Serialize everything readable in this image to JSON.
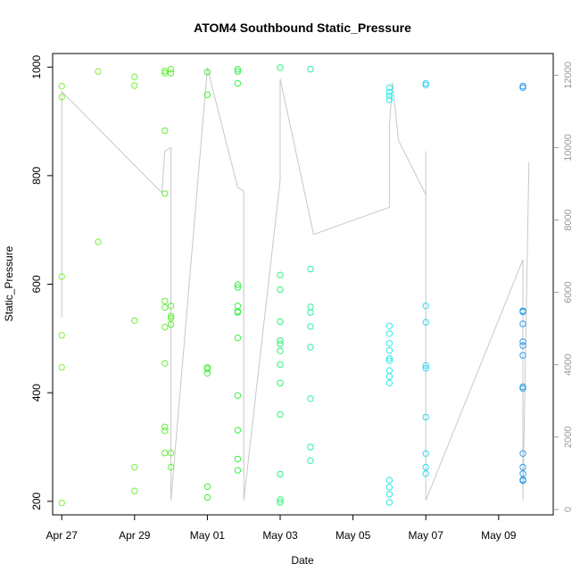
{
  "chart_data": {
    "type": "scatter",
    "title": "ATOM4 Southbound Static_Pressure",
    "xlabel": "Date",
    "ylabel": "Static_Pressure",
    "xlim": [
      "2024-04-26T18:00",
      "2024-05-10T12:00"
    ],
    "ylim": [
      175,
      1025
    ],
    "y2lim": [
      -150,
      12600
    ],
    "x_ticks": [
      {
        "date": "2024-04-27T00:00",
        "label": "Apr 27"
      },
      {
        "date": "2024-04-29T00:00",
        "label": "Apr 29"
      },
      {
        "date": "2024-05-01T00:00",
        "label": "May 01"
      },
      {
        "date": "2024-05-03T00:00",
        "label": "May 03"
      },
      {
        "date": "2024-05-05T00:00",
        "label": "May 05"
      },
      {
        "date": "2024-05-07T00:00",
        "label": "May 07"
      },
      {
        "date": "2024-05-09T00:00",
        "label": "May 09"
      }
    ],
    "y_ticks": [
      200,
      400,
      600,
      800,
      1000
    ],
    "y2_ticks": [
      0,
      2000,
      4000,
      6000,
      8000,
      10000,
      12000
    ],
    "grid": false,
    "legend": "none",
    "point_style": "open-circle",
    "color_scale": "time-gradient green to blue",
    "colors": {
      "line": "#c8c8c8",
      "axis": "#000000",
      "axis_right": "#999999"
    },
    "series": [
      {
        "role": "scatter",
        "points": [
          {
            "x": "2024-04-27T00:00",
            "y": 965,
            "c": "#88f03a"
          },
          {
            "x": "2024-04-27T00:00",
            "y": 945,
            "c": "#88f03a"
          },
          {
            "x": "2024-04-27T00:00",
            "y": 614,
            "c": "#88f03a"
          },
          {
            "x": "2024-04-27T00:00",
            "y": 506,
            "c": "#88f03a"
          },
          {
            "x": "2024-04-27T00:00",
            "y": 447,
            "c": "#88f03a"
          },
          {
            "x": "2024-04-27T00:00",
            "y": 197,
            "c": "#88f03a"
          },
          {
            "x": "2024-04-28T00:00",
            "y": 992,
            "c": "#80f038"
          },
          {
            "x": "2024-04-28T00:00",
            "y": 678,
            "c": "#80f038"
          },
          {
            "x": "2024-04-29T00:00",
            "y": 982,
            "c": "#72f036"
          },
          {
            "x": "2024-04-29T00:00",
            "y": 966,
            "c": "#72f036"
          },
          {
            "x": "2024-04-29T00:00",
            "y": 533,
            "c": "#72f036"
          },
          {
            "x": "2024-04-29T00:00",
            "y": 263,
            "c": "#72f036"
          },
          {
            "x": "2024-04-29T00:00",
            "y": 219,
            "c": "#72f036"
          },
          {
            "x": "2024-04-29T20:00",
            "y": 993,
            "c": "#60f034"
          },
          {
            "x": "2024-04-29T20:00",
            "y": 989,
            "c": "#60f034"
          },
          {
            "x": "2024-04-29T20:00",
            "y": 883,
            "c": "#60f034"
          },
          {
            "x": "2024-04-29T20:00",
            "y": 767,
            "c": "#60f034"
          },
          {
            "x": "2024-04-29T20:00",
            "y": 569,
            "c": "#60f034"
          },
          {
            "x": "2024-04-29T20:00",
            "y": 557,
            "c": "#60f034"
          },
          {
            "x": "2024-04-29T20:00",
            "y": 521,
            "c": "#60f034"
          },
          {
            "x": "2024-04-29T20:00",
            "y": 454,
            "c": "#60f034"
          },
          {
            "x": "2024-04-29T20:00",
            "y": 337,
            "c": "#60f034"
          },
          {
            "x": "2024-04-29T20:00",
            "y": 330,
            "c": "#60f034"
          },
          {
            "x": "2024-04-29T20:00",
            "y": 289,
            "c": "#60f034"
          },
          {
            "x": "2024-04-30T00:00",
            "y": 996,
            "c": "#5cf034"
          },
          {
            "x": "2024-04-30T00:00",
            "y": 989,
            "c": "#5cf034"
          },
          {
            "x": "2024-04-30T00:00",
            "y": 560,
            "c": "#5cf034"
          },
          {
            "x": "2024-04-30T00:00",
            "y": 541,
            "c": "#5cf034"
          },
          {
            "x": "2024-04-30T00:00",
            "y": 537,
            "c": "#5cf034"
          },
          {
            "x": "2024-04-30T00:00",
            "y": 526,
            "c": "#5cf034"
          },
          {
            "x": "2024-04-30T00:00",
            "y": 289,
            "c": "#5cf034"
          },
          {
            "x": "2024-04-30T00:00",
            "y": 263,
            "c": "#5cf034"
          },
          {
            "x": "2024-05-01T00:00",
            "y": 991,
            "c": "#44f03a"
          },
          {
            "x": "2024-05-01T00:00",
            "y": 949,
            "c": "#44f03a"
          },
          {
            "x": "2024-05-01T00:00",
            "y": 447,
            "c": "#44f03a"
          },
          {
            "x": "2024-05-01T00:00",
            "y": 444,
            "c": "#44f03a"
          },
          {
            "x": "2024-05-01T00:00",
            "y": 436,
            "c": "#44f03a"
          },
          {
            "x": "2024-05-01T00:00",
            "y": 227,
            "c": "#44f03a"
          },
          {
            "x": "2024-05-01T00:00",
            "y": 207,
            "c": "#44f03a"
          },
          {
            "x": "2024-05-01T20:00",
            "y": 996,
            "c": "#38f048"
          },
          {
            "x": "2024-05-01T20:00",
            "y": 992,
            "c": "#38f048"
          },
          {
            "x": "2024-05-01T20:00",
            "y": 970,
            "c": "#38f048"
          },
          {
            "x": "2024-05-01T20:00",
            "y": 599,
            "c": "#38f048"
          },
          {
            "x": "2024-05-01T20:00",
            "y": 594,
            "c": "#38f048"
          },
          {
            "x": "2024-05-01T20:00",
            "y": 560,
            "c": "#38f048"
          },
          {
            "x": "2024-05-01T20:00",
            "y": 550,
            "c": "#38f048"
          },
          {
            "x": "2024-05-01T20:00",
            "y": 548,
            "c": "#38f048"
          },
          {
            "x": "2024-05-01T20:00",
            "y": 501,
            "c": "#38f048"
          },
          {
            "x": "2024-05-01T20:00",
            "y": 395,
            "c": "#38f048"
          },
          {
            "x": "2024-05-01T20:00",
            "y": 331,
            "c": "#38f048"
          },
          {
            "x": "2024-05-01T20:00",
            "y": 278,
            "c": "#38f048"
          },
          {
            "x": "2024-05-01T20:00",
            "y": 257,
            "c": "#38f048"
          },
          {
            "x": "2024-05-03T00:00",
            "y": 999,
            "c": "#30f07a"
          },
          {
            "x": "2024-05-03T00:00",
            "y": 617,
            "c": "#30f07a"
          },
          {
            "x": "2024-05-03T00:00",
            "y": 590,
            "c": "#30f07a"
          },
          {
            "x": "2024-05-03T00:00",
            "y": 531,
            "c": "#30f07a"
          },
          {
            "x": "2024-05-03T00:00",
            "y": 496,
            "c": "#30f07a"
          },
          {
            "x": "2024-05-03T00:00",
            "y": 490,
            "c": "#30f07a"
          },
          {
            "x": "2024-05-03T00:00",
            "y": 477,
            "c": "#30f07a"
          },
          {
            "x": "2024-05-03T00:00",
            "y": 452,
            "c": "#30f07a"
          },
          {
            "x": "2024-05-03T00:00",
            "y": 418,
            "c": "#30f07a"
          },
          {
            "x": "2024-05-03T00:00",
            "y": 360,
            "c": "#30f07a"
          },
          {
            "x": "2024-05-03T00:00",
            "y": 250,
            "c": "#30f07a"
          },
          {
            "x": "2024-05-03T00:00",
            "y": 203,
            "c": "#30f07a"
          },
          {
            "x": "2024-05-03T00:00",
            "y": 198,
            "c": "#30f07a"
          },
          {
            "x": "2024-05-03T20:00",
            "y": 996,
            "c": "#2ef0a0"
          },
          {
            "x": "2024-05-03T20:00",
            "y": 628,
            "c": "#2ef0a0"
          },
          {
            "x": "2024-05-03T20:00",
            "y": 558,
            "c": "#2ef0a0"
          },
          {
            "x": "2024-05-03T20:00",
            "y": 548,
            "c": "#2ef0a0"
          },
          {
            "x": "2024-05-03T20:00",
            "y": 522,
            "c": "#2ef0a0"
          },
          {
            "x": "2024-05-03T20:00",
            "y": 484,
            "c": "#2ef0a0"
          },
          {
            "x": "2024-05-03T20:00",
            "y": 389,
            "c": "#2ef0a0"
          },
          {
            "x": "2024-05-03T20:00",
            "y": 300,
            "c": "#2ef0a0"
          },
          {
            "x": "2024-05-03T20:00",
            "y": 275,
            "c": "#2ef0a0"
          },
          {
            "x": "2024-05-06T00:00",
            "y": 962,
            "c": "#2ee8e8"
          },
          {
            "x": "2024-05-06T00:00",
            "y": 954,
            "c": "#2ee8e8"
          },
          {
            "x": "2024-05-06T00:00",
            "y": 947,
            "c": "#2ee8e8"
          },
          {
            "x": "2024-05-06T00:00",
            "y": 940,
            "c": "#2ee8e8"
          },
          {
            "x": "2024-05-06T00:00",
            "y": 523,
            "c": "#2ee8e8"
          },
          {
            "x": "2024-05-06T00:00",
            "y": 509,
            "c": "#2ee8e8"
          },
          {
            "x": "2024-05-06T00:00",
            "y": 491,
            "c": "#2ee8e8"
          },
          {
            "x": "2024-05-06T00:00",
            "y": 478,
            "c": "#2ee8e8"
          },
          {
            "x": "2024-05-06T00:00",
            "y": 463,
            "c": "#2ee8e8"
          },
          {
            "x": "2024-05-06T00:00",
            "y": 459,
            "c": "#2ee8e8"
          },
          {
            "x": "2024-05-06T00:00",
            "y": 441,
            "c": "#2ee8e8"
          },
          {
            "x": "2024-05-06T00:00",
            "y": 430,
            "c": "#2ee8e8"
          },
          {
            "x": "2024-05-06T00:00",
            "y": 418,
            "c": "#2ee8e8"
          },
          {
            "x": "2024-05-06T00:00",
            "y": 239,
            "c": "#2ee8e8"
          },
          {
            "x": "2024-05-06T00:00",
            "y": 226,
            "c": "#2ee8e8"
          },
          {
            "x": "2024-05-06T00:00",
            "y": 213,
            "c": "#2ee8e8"
          },
          {
            "x": "2024-05-06T00:00",
            "y": 198,
            "c": "#2ee8e8"
          },
          {
            "x": "2024-05-07T00:00",
            "y": 970,
            "c": "#30d8f0"
          },
          {
            "x": "2024-05-07T00:00",
            "y": 967,
            "c": "#30d8f0"
          },
          {
            "x": "2024-05-07T00:00",
            "y": 560,
            "c": "#30d8f0"
          },
          {
            "x": "2024-05-07T00:00",
            "y": 530,
            "c": "#30d8f0"
          },
          {
            "x": "2024-05-07T00:00",
            "y": 450,
            "c": "#30d8f0"
          },
          {
            "x": "2024-05-07T00:00",
            "y": 445,
            "c": "#30d8f0"
          },
          {
            "x": "2024-05-07T00:00",
            "y": 355,
            "c": "#30d8f0"
          },
          {
            "x": "2024-05-07T00:00",
            "y": 288,
            "c": "#30d8f0"
          },
          {
            "x": "2024-05-07T00:00",
            "y": 263,
            "c": "#30d8f0"
          },
          {
            "x": "2024-05-07T00:00",
            "y": 251,
            "c": "#30d8f0"
          },
          {
            "x": "2024-05-09T16:00",
            "y": 965,
            "c": "#2e9ee8"
          },
          {
            "x": "2024-05-09T16:00",
            "y": 962,
            "c": "#2e9ee8"
          },
          {
            "x": "2024-05-09T16:00",
            "y": 551,
            "c": "#2e9ee8"
          },
          {
            "x": "2024-05-09T16:00",
            "y": 549,
            "c": "#2e9ee8"
          },
          {
            "x": "2024-05-09T16:00",
            "y": 527,
            "c": "#2e9ee8"
          },
          {
            "x": "2024-05-09T16:00",
            "y": 494,
            "c": "#2e9ee8"
          },
          {
            "x": "2024-05-09T16:00",
            "y": 487,
            "c": "#2e9ee8"
          },
          {
            "x": "2024-05-09T16:00",
            "y": 469,
            "c": "#2e9ee8"
          },
          {
            "x": "2024-05-09T16:00",
            "y": 411,
            "c": "#2e9ee8"
          },
          {
            "x": "2024-05-09T16:00",
            "y": 408,
            "c": "#2e9ee8"
          },
          {
            "x": "2024-05-09T16:00",
            "y": 288,
            "c": "#2e9ee8"
          },
          {
            "x": "2024-05-09T16:00",
            "y": 263,
            "c": "#2e9ee8"
          },
          {
            "x": "2024-05-09T16:00",
            "y": 251,
            "c": "#2e9ee8"
          },
          {
            "x": "2024-05-09T16:00",
            "y": 240,
            "c": "#2e9ee8"
          },
          {
            "x": "2024-05-09T16:00",
            "y": 238,
            "c": "#2e9ee8"
          }
        ]
      },
      {
        "role": "line-right-axis",
        "points": [
          {
            "x": "2024-04-27T00:00",
            "y2": 5300
          },
          {
            "x": "2024-04-27T00:00",
            "y2": 11550
          },
          {
            "x": "2024-04-29T18:00",
            "y2": 8750
          },
          {
            "x": "2024-04-29T20:00",
            "y2": 9900
          },
          {
            "x": "2024-04-30T00:00",
            "y2": 10000
          },
          {
            "x": "2024-04-30T00:00",
            "y2": 250
          },
          {
            "x": "2024-05-01T00:00",
            "y2": 12200
          },
          {
            "x": "2024-05-01T20:00",
            "y2": 8900
          },
          {
            "x": "2024-05-02T00:00",
            "y2": 8800
          },
          {
            "x": "2024-05-02T00:00",
            "y2": 250
          },
          {
            "x": "2024-05-03T00:00",
            "y2": 9100
          },
          {
            "x": "2024-05-03T00:00",
            "y2": 9300
          },
          {
            "x": "2024-05-03T00:00",
            "y2": 11900
          },
          {
            "x": "2024-05-03T20:00",
            "y2": 8000
          },
          {
            "x": "2024-05-03T22:00",
            "y2": 7600
          },
          {
            "x": "2024-05-06T00:00",
            "y2": 8350
          },
          {
            "x": "2024-05-06T00:00",
            "y2": 10600
          },
          {
            "x": "2024-05-06T02:00",
            "y2": 11800
          },
          {
            "x": "2024-05-06T06:00",
            "y2": 10200
          },
          {
            "x": "2024-05-07T00:00",
            "y2": 8700
          },
          {
            "x": "2024-05-07T00:00",
            "y2": 9900
          },
          {
            "x": "2024-05-07T00:00",
            "y2": 250
          },
          {
            "x": "2024-05-09T16:00",
            "y2": 6900
          },
          {
            "x": "2024-05-09T16:00",
            "y2": 250
          },
          {
            "x": "2024-05-09T20:00",
            "y2": 9600
          }
        ]
      }
    ]
  }
}
